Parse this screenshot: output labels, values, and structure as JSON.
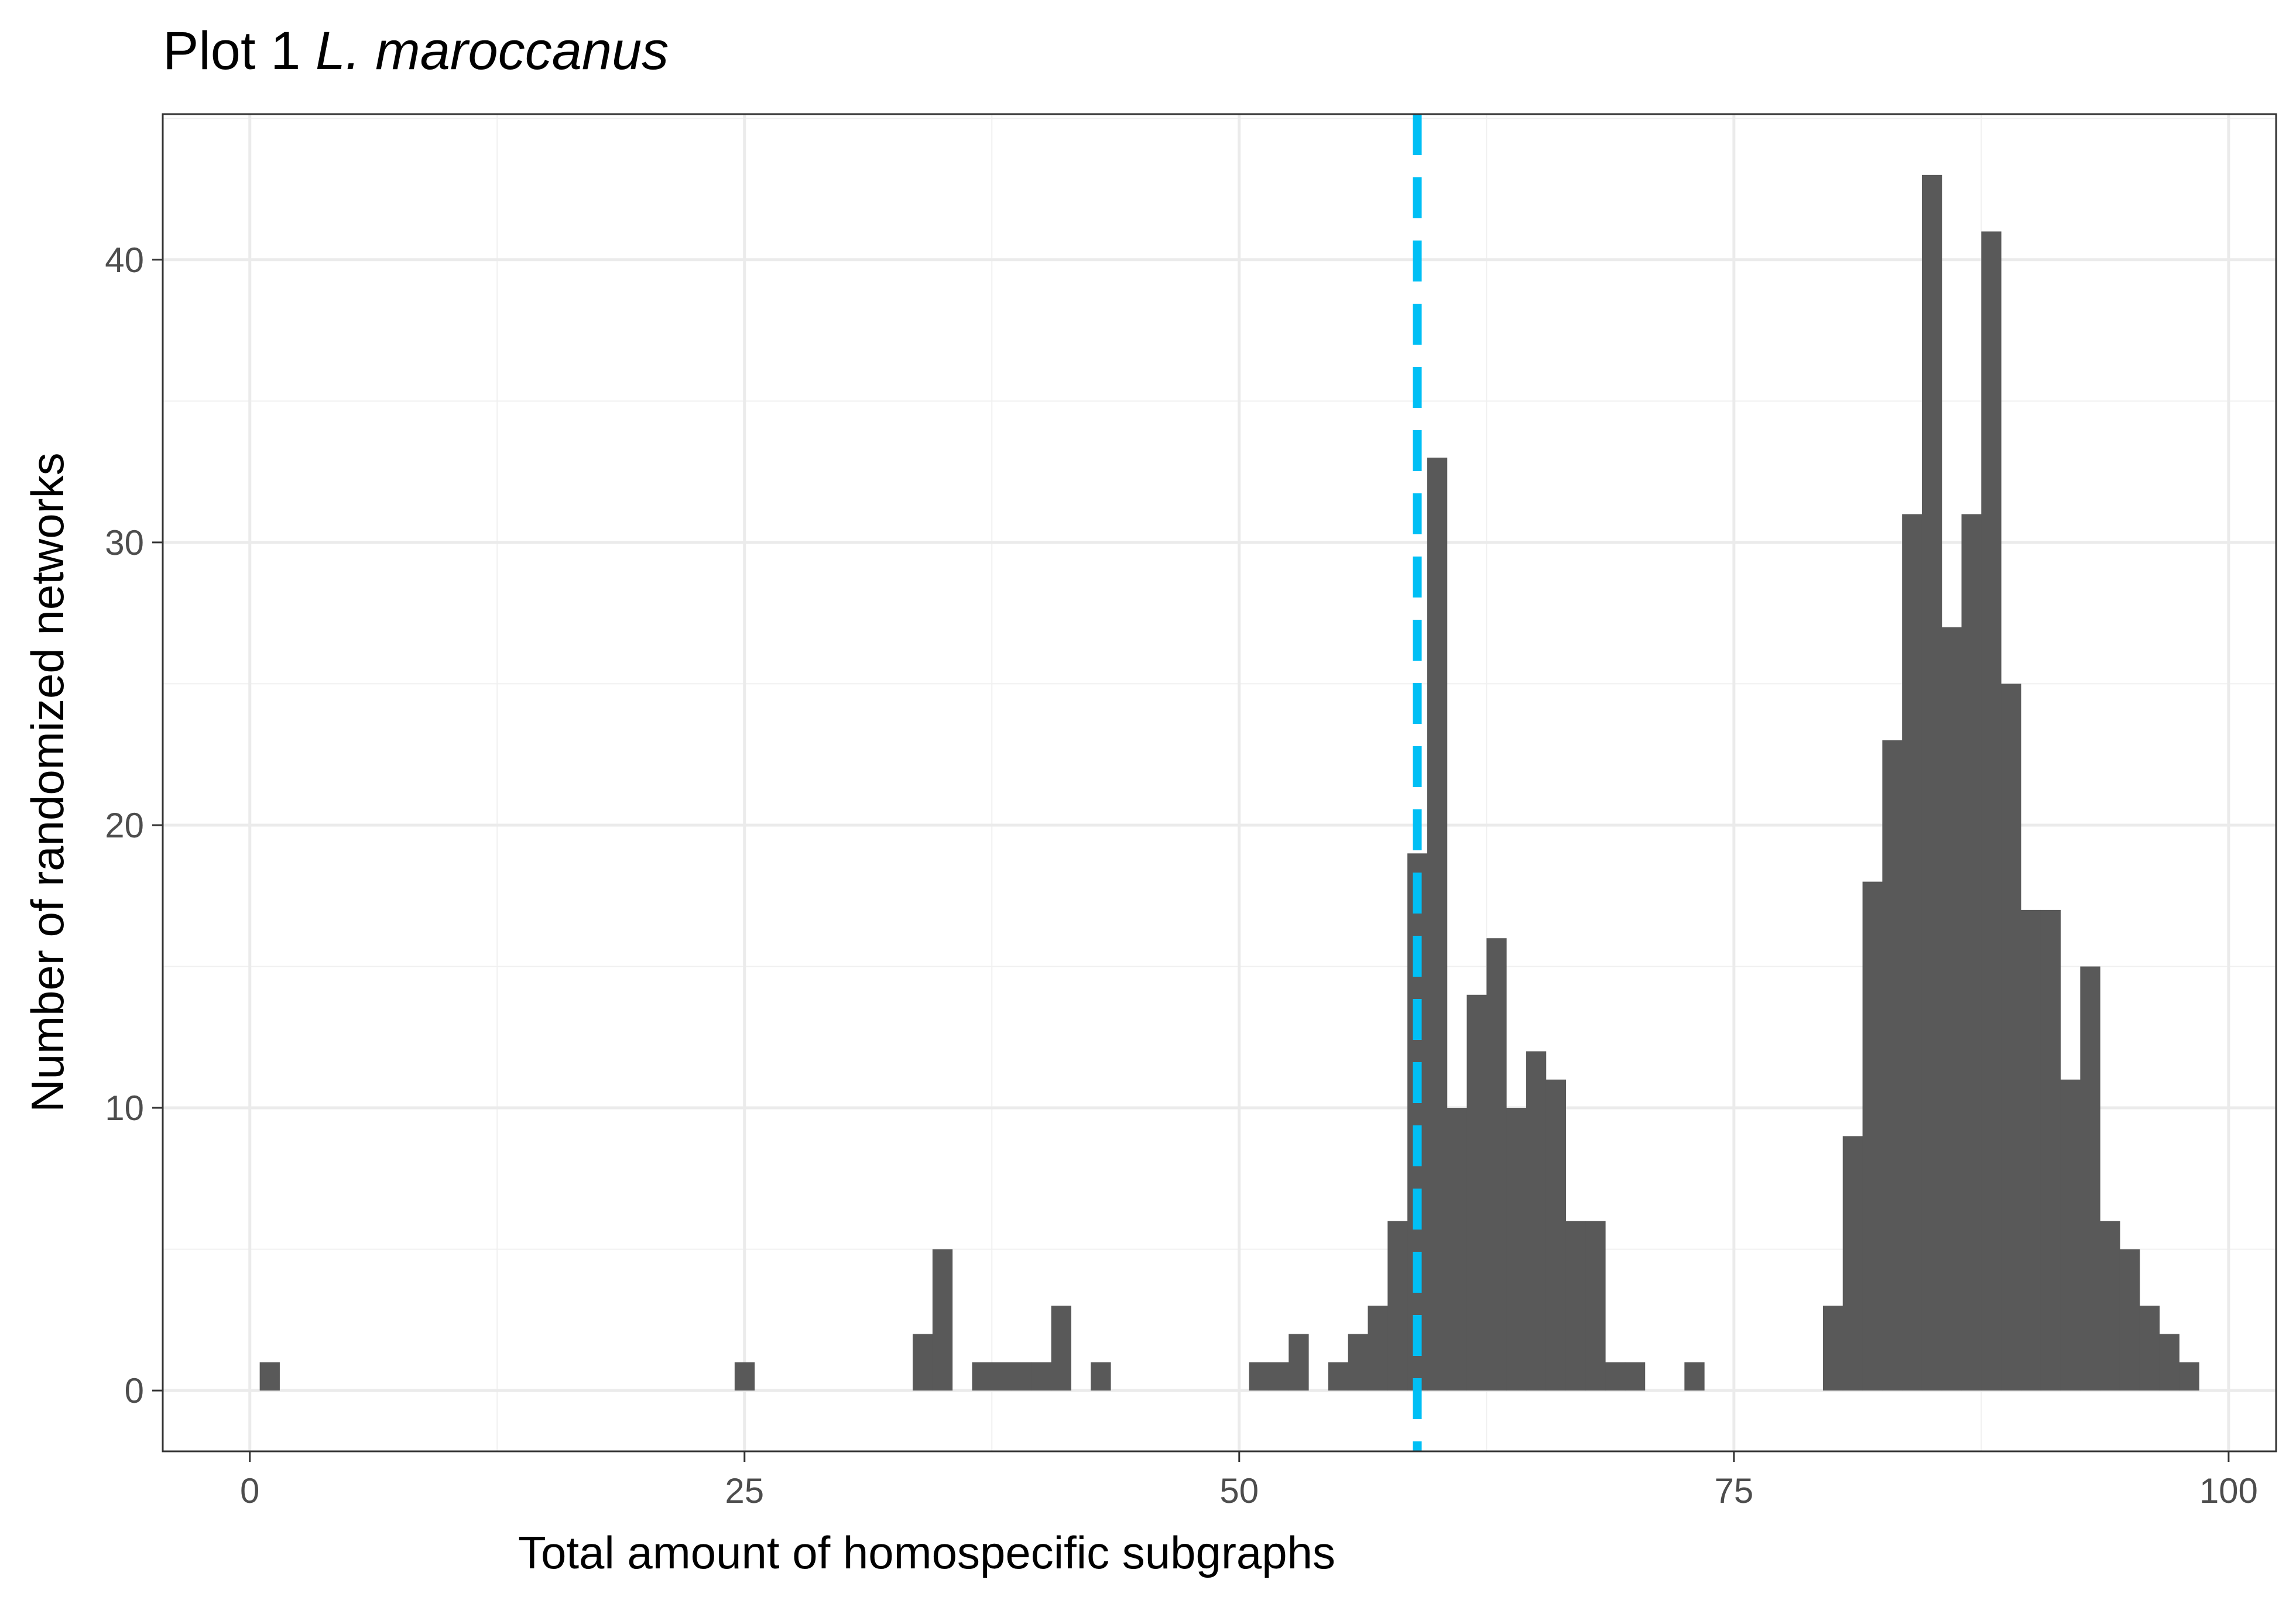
{
  "chart_data": {
    "type": "bar",
    "title_prefix": "Plot 1 ",
    "title_species": "L. maroccanus",
    "xlabel": "Total amount of homospecific subgraphs",
    "ylabel": "Number of randomized networks",
    "xlim": [
      -4.4,
      102.4
    ],
    "ylim": [
      -2.15,
      45.15
    ],
    "x_ticks": [
      0,
      25,
      50,
      75,
      100
    ],
    "x_tick_labels": [
      "0",
      "25",
      "50",
      "75",
      "100"
    ],
    "y_ticks": [
      0,
      10,
      20,
      30,
      40
    ],
    "y_tick_labels": [
      "0",
      "10",
      "20",
      "30",
      "40"
    ],
    "grid": true,
    "bin_width": 1,
    "bar_color": "#595959",
    "reference_line": {
      "x": 59,
      "color": "#00BFF5",
      "style": "dashed"
    },
    "bins": [
      {
        "x": 1,
        "count": 1
      },
      {
        "x": 25,
        "count": 1
      },
      {
        "x": 34,
        "count": 2
      },
      {
        "x": 35,
        "count": 5
      },
      {
        "x": 37,
        "count": 1
      },
      {
        "x": 38,
        "count": 1
      },
      {
        "x": 39,
        "count": 1
      },
      {
        "x": 40,
        "count": 1
      },
      {
        "x": 41,
        "count": 3
      },
      {
        "x": 43,
        "count": 1
      },
      {
        "x": 51,
        "count": 1
      },
      {
        "x": 52,
        "count": 1
      },
      {
        "x": 53,
        "count": 2
      },
      {
        "x": 55,
        "count": 1
      },
      {
        "x": 56,
        "count": 2
      },
      {
        "x": 57,
        "count": 3
      },
      {
        "x": 58,
        "count": 6
      },
      {
        "x": 59,
        "count": 19
      },
      {
        "x": 60,
        "count": 33
      },
      {
        "x": 61,
        "count": 10
      },
      {
        "x": 62,
        "count": 14
      },
      {
        "x": 63,
        "count": 16
      },
      {
        "x": 64,
        "count": 10
      },
      {
        "x": 65,
        "count": 12
      },
      {
        "x": 66,
        "count": 11
      },
      {
        "x": 67,
        "count": 6
      },
      {
        "x": 68,
        "count": 6
      },
      {
        "x": 69,
        "count": 1
      },
      {
        "x": 70,
        "count": 1
      },
      {
        "x": 73,
        "count": 1
      },
      {
        "x": 80,
        "count": 3
      },
      {
        "x": 81,
        "count": 9
      },
      {
        "x": 82,
        "count": 18
      },
      {
        "x": 83,
        "count": 23
      },
      {
        "x": 84,
        "count": 31
      },
      {
        "x": 85,
        "count": 43
      },
      {
        "x": 86,
        "count": 27
      },
      {
        "x": 87,
        "count": 31
      },
      {
        "x": 88,
        "count": 41
      },
      {
        "x": 89,
        "count": 25
      },
      {
        "x": 90,
        "count": 17
      },
      {
        "x": 91,
        "count": 17
      },
      {
        "x": 92,
        "count": 11
      },
      {
        "x": 93,
        "count": 15
      },
      {
        "x": 94,
        "count": 6
      },
      {
        "x": 95,
        "count": 5
      },
      {
        "x": 96,
        "count": 3
      },
      {
        "x": 97,
        "count": 2
      },
      {
        "x": 98,
        "count": 1
      }
    ]
  }
}
